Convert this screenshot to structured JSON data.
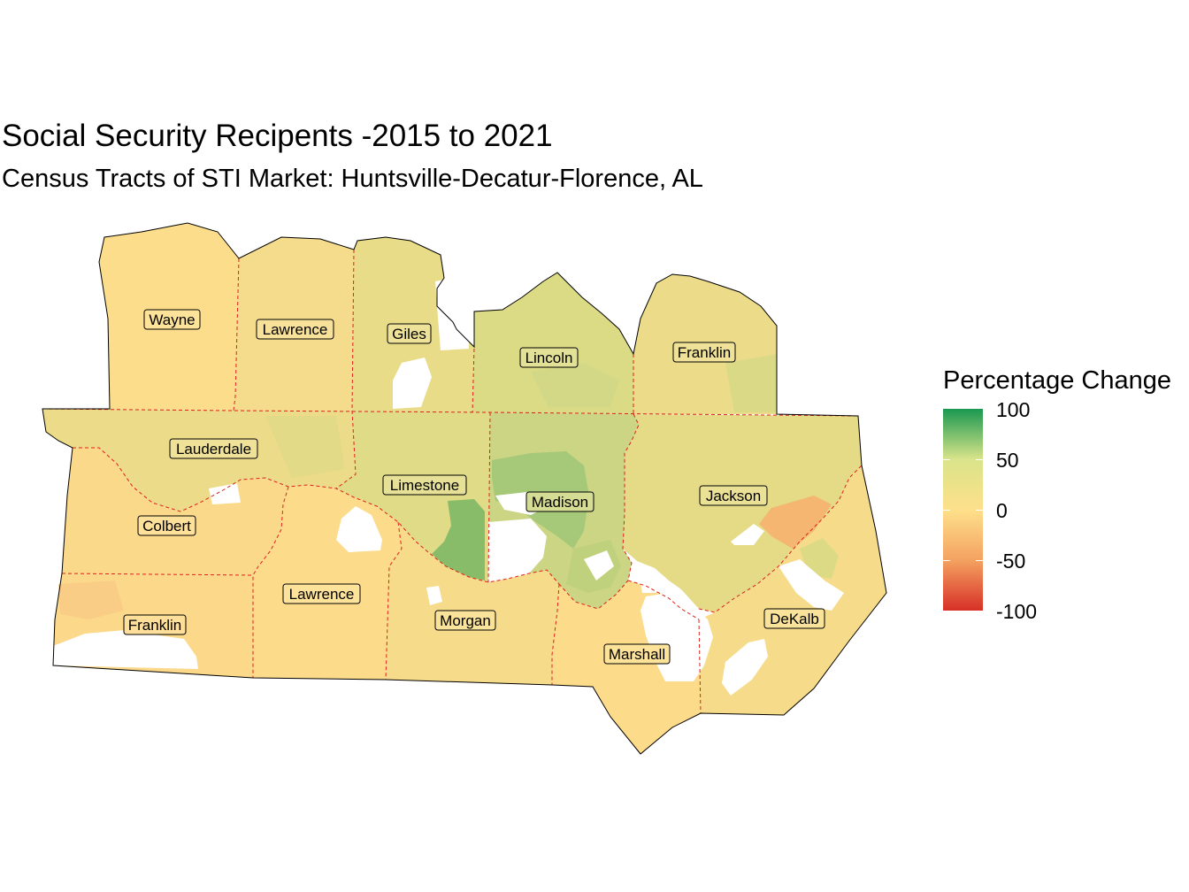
{
  "title": "Social Security Recipents -2015 to 2021",
  "subtitle": "Census Tracts of STI Market: Huntsville-Decatur-Florence, AL",
  "legend": {
    "title": "Percentage Change",
    "ticks": [
      "100",
      "50",
      "0",
      "-50",
      "-100"
    ]
  },
  "counties": [
    {
      "name": "Wayne",
      "color": "#fcdd8c"
    },
    {
      "name": "Lawrence",
      "color": "#f5dc8c"
    },
    {
      "name": "Giles",
      "color": "#e9dc88"
    },
    {
      "name": "Lincoln",
      "color": "#dbdb86"
    },
    {
      "name": "Franklin",
      "color": "#ecdc89"
    },
    {
      "name": "Lauderdale",
      "color": "#ecdb88"
    },
    {
      "name": "Limestone",
      "color": "#e0db86"
    },
    {
      "name": "Madison",
      "color": "#cbd584"
    },
    {
      "name": "Jackson",
      "color": "#e5db87"
    },
    {
      "name": "Colbert",
      "color": "#fbd98a"
    },
    {
      "name": "Lawrence",
      "color": "#fcdb8b"
    },
    {
      "name": "Franklin",
      "color": "#fcd88a"
    },
    {
      "name": "Morgan",
      "color": "#f6db8a"
    },
    {
      "name": "Marshall",
      "color": "#fcdb8b"
    },
    {
      "name": "DeKalb",
      "color": "#f6dc8a"
    }
  ],
  "colors": {
    "high": "#1a9850",
    "mid_high": "#d9e48a",
    "zero": "#fee08b",
    "mid_low": "#f4a261",
    "low": "#d73027",
    "county_border": "#e0201b"
  }
}
